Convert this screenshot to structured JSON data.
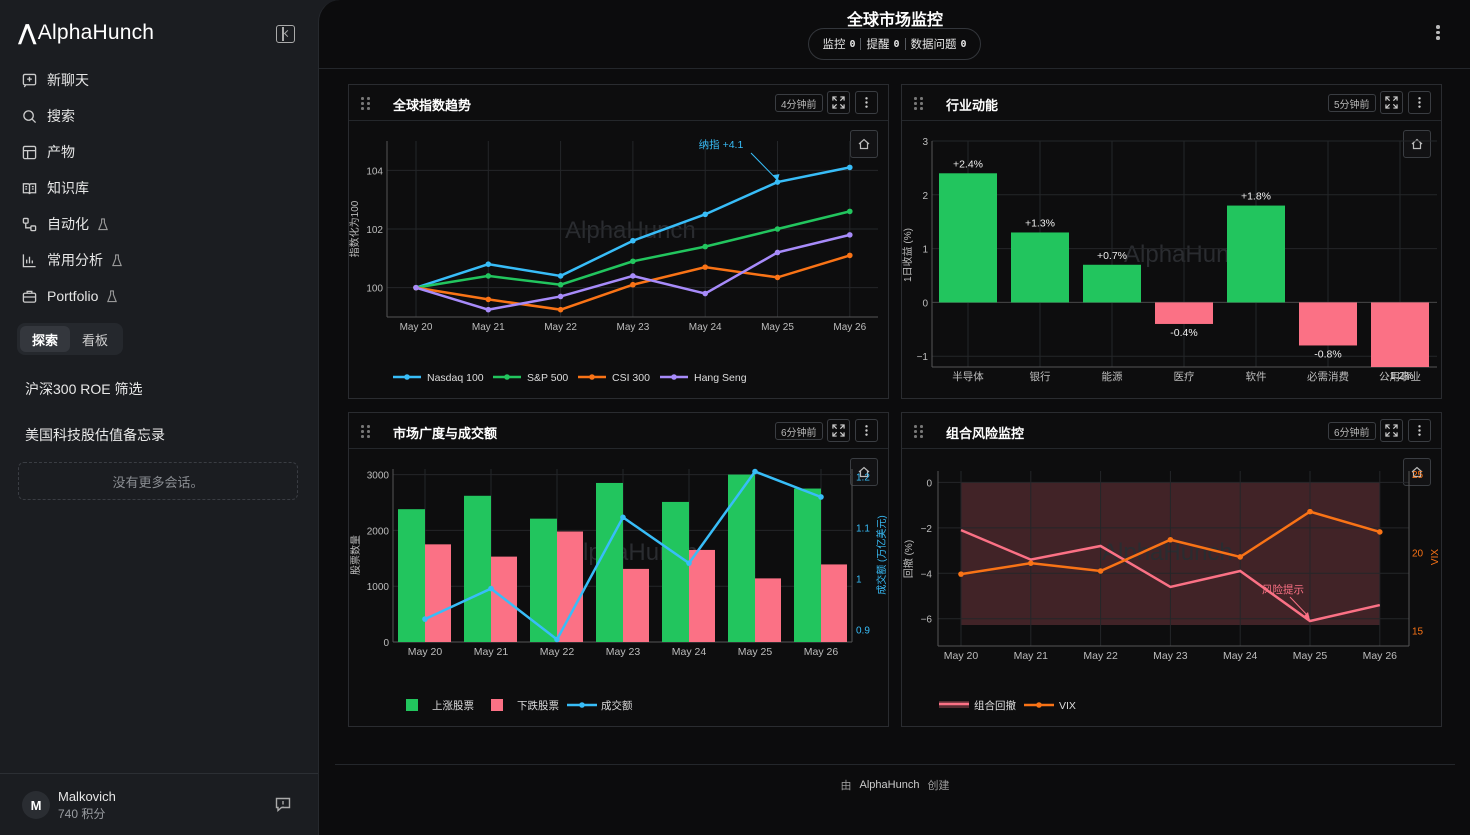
{
  "sidebar": {
    "logo": "AlphaHunch",
    "nav": [
      {
        "label": "新聊天",
        "icon": "new-chat-icon"
      },
      {
        "label": "搜索",
        "icon": "search-icon"
      },
      {
        "label": "产物",
        "icon": "artifact-icon"
      },
      {
        "label": "知识库",
        "icon": "book-icon"
      },
      {
        "label": "自动化",
        "icon": "automation-icon",
        "beta": true
      },
      {
        "label": "常用分析",
        "icon": "bar-chart-icon",
        "beta": true
      },
      {
        "label": "Portfolio",
        "icon": "briefcase-icon",
        "beta": true
      }
    ],
    "toggle": {
      "explore": "探索",
      "board": "看板"
    },
    "sessions": [
      "沪深300 ROE 筛选",
      "美国科技股估值备忘录"
    ],
    "no_more": "没有更多会话。",
    "user": {
      "initial": "M",
      "name": "Malkovich",
      "points": "740 积分"
    }
  },
  "header": {
    "title": "全球市场监控",
    "monitor_label": "监控",
    "monitor_count": "0",
    "alert_label": "提醒",
    "alert_count": "0",
    "issue_label": "数据问题",
    "issue_count": "0"
  },
  "panels": {
    "p1": {
      "title": "全球指数趋势",
      "age": "4分钟前"
    },
    "p2": {
      "title": "行业动能",
      "age": "5分钟前"
    },
    "p3": {
      "title": "市场广度与成交额",
      "age": "6分钟前"
    },
    "p4": {
      "title": "组合风险监控",
      "age": "6分钟前"
    }
  },
  "footer": {
    "prefix": "由",
    "brand": "AlphaHunch",
    "suffix": "创建"
  },
  "colors": {
    "blue": "#38bdf8",
    "green": "#22c55e",
    "orange": "#f97316",
    "purple": "#a78bfa",
    "pink": "#fb7185"
  },
  "chart_data": [
    {
      "type": "line",
      "ylabel": "指数化为100",
      "x": [
        "May 20",
        "May 21",
        "May 22",
        "May 23",
        "May 24",
        "May 25",
        "May 26"
      ],
      "yticks": [
        100,
        102,
        104
      ],
      "ylim": [
        99,
        105
      ],
      "series": [
        {
          "name": "Nasdaq 100",
          "color": "#38bdf8",
          "values": [
            100,
            100.8,
            100.4,
            101.6,
            102.5,
            103.6,
            104.1
          ]
        },
        {
          "name": "S&P 500",
          "color": "#22c55e",
          "values": [
            100,
            100.4,
            100.1,
            100.9,
            101.4,
            102.0,
            102.6
          ]
        },
        {
          "name": "CSI 300",
          "color": "#f97316",
          "values": [
            100,
            99.6,
            99.25,
            100.1,
            100.7,
            100.35,
            101.1
          ]
        },
        {
          "name": "Hang Seng",
          "color": "#a78bfa",
          "values": [
            100,
            99.25,
            99.7,
            100.4,
            99.8,
            101.2,
            101.8
          ]
        }
      ],
      "annotation": {
        "text": "纳指 +4.1",
        "x": "May 25",
        "y": 103.6
      },
      "legend": "bottom"
    },
    {
      "type": "bar",
      "ylabel": "1日收益 (%)",
      "categories": [
        "半导体",
        "银行",
        "能源",
        "医疗",
        "软件",
        "必需消费",
        "公用事业"
      ],
      "values": [
        2.4,
        1.3,
        0.7,
        -0.4,
        1.8,
        -0.8,
        -1.2
      ],
      "labels": [
        "+2.4%",
        "+1.3%",
        "+0.7%",
        "-0.4%",
        "+1.8%",
        "-0.8%",
        "-1.2%"
      ],
      "yticks": [
        -1,
        0,
        1,
        2,
        3
      ],
      "ylim": [
        -1.2,
        3
      ]
    },
    {
      "type": "bar",
      "ylabel": "股票数量",
      "y2label": "成交额 (万亿美元)",
      "categories": [
        "May 20",
        "May 21",
        "May 22",
        "May 23",
        "May 24",
        "May 25",
        "May 26"
      ],
      "yticks": [
        0,
        1000,
        2000,
        3000
      ],
      "y2ticks": [
        0.9,
        1,
        1.1,
        1.2
      ],
      "ylim": [
        0,
        3100
      ],
      "y2lim": [
        0.875,
        1.215
      ],
      "series": [
        {
          "name": "上涨股票",
          "color": "#22c55e",
          "values": [
            2380,
            2620,
            2210,
            2850,
            2510,
            3000,
            2750
          ]
        },
        {
          "name": "下跌股票",
          "color": "#fb7185",
          "values": [
            1750,
            1530,
            1980,
            1310,
            1650,
            1140,
            1390
          ]
        },
        {
          "name": "成交额",
          "color": "#38bdf8",
          "axis": "y2",
          "values": [
            0.92,
            0.98,
            0.88,
            1.12,
            1.03,
            1.21,
            1.16
          ]
        }
      ]
    },
    {
      "type": "line",
      "ylabel": "回撤 (%)",
      "y2label": "VIX",
      "x": [
        "May 20",
        "May 21",
        "May 22",
        "May 23",
        "May 24",
        "May 25",
        "May 26"
      ],
      "yticks": [
        -6,
        -4,
        -2,
        0
      ],
      "y2ticks": [
        15,
        20,
        25
      ],
      "ylim": [
        -7.2,
        0.5
      ],
      "y2lim": [
        14,
        25.2
      ],
      "series": [
        {
          "name": "组合回撤",
          "color": "#fb7185",
          "values": [
            -2.1,
            -3.4,
            -2.8,
            -4.6,
            -3.9,
            -6.1,
            -5.4
          ]
        },
        {
          "name": "VIX",
          "color": "#f97316",
          "axis": "y2",
          "values": [
            18.6,
            19.3,
            18.8,
            20.8,
            19.7,
            22.6,
            21.3
          ]
        }
      ],
      "annotation": {
        "text": "风险提示",
        "x": "May 25",
        "y": -6.1
      }
    }
  ]
}
